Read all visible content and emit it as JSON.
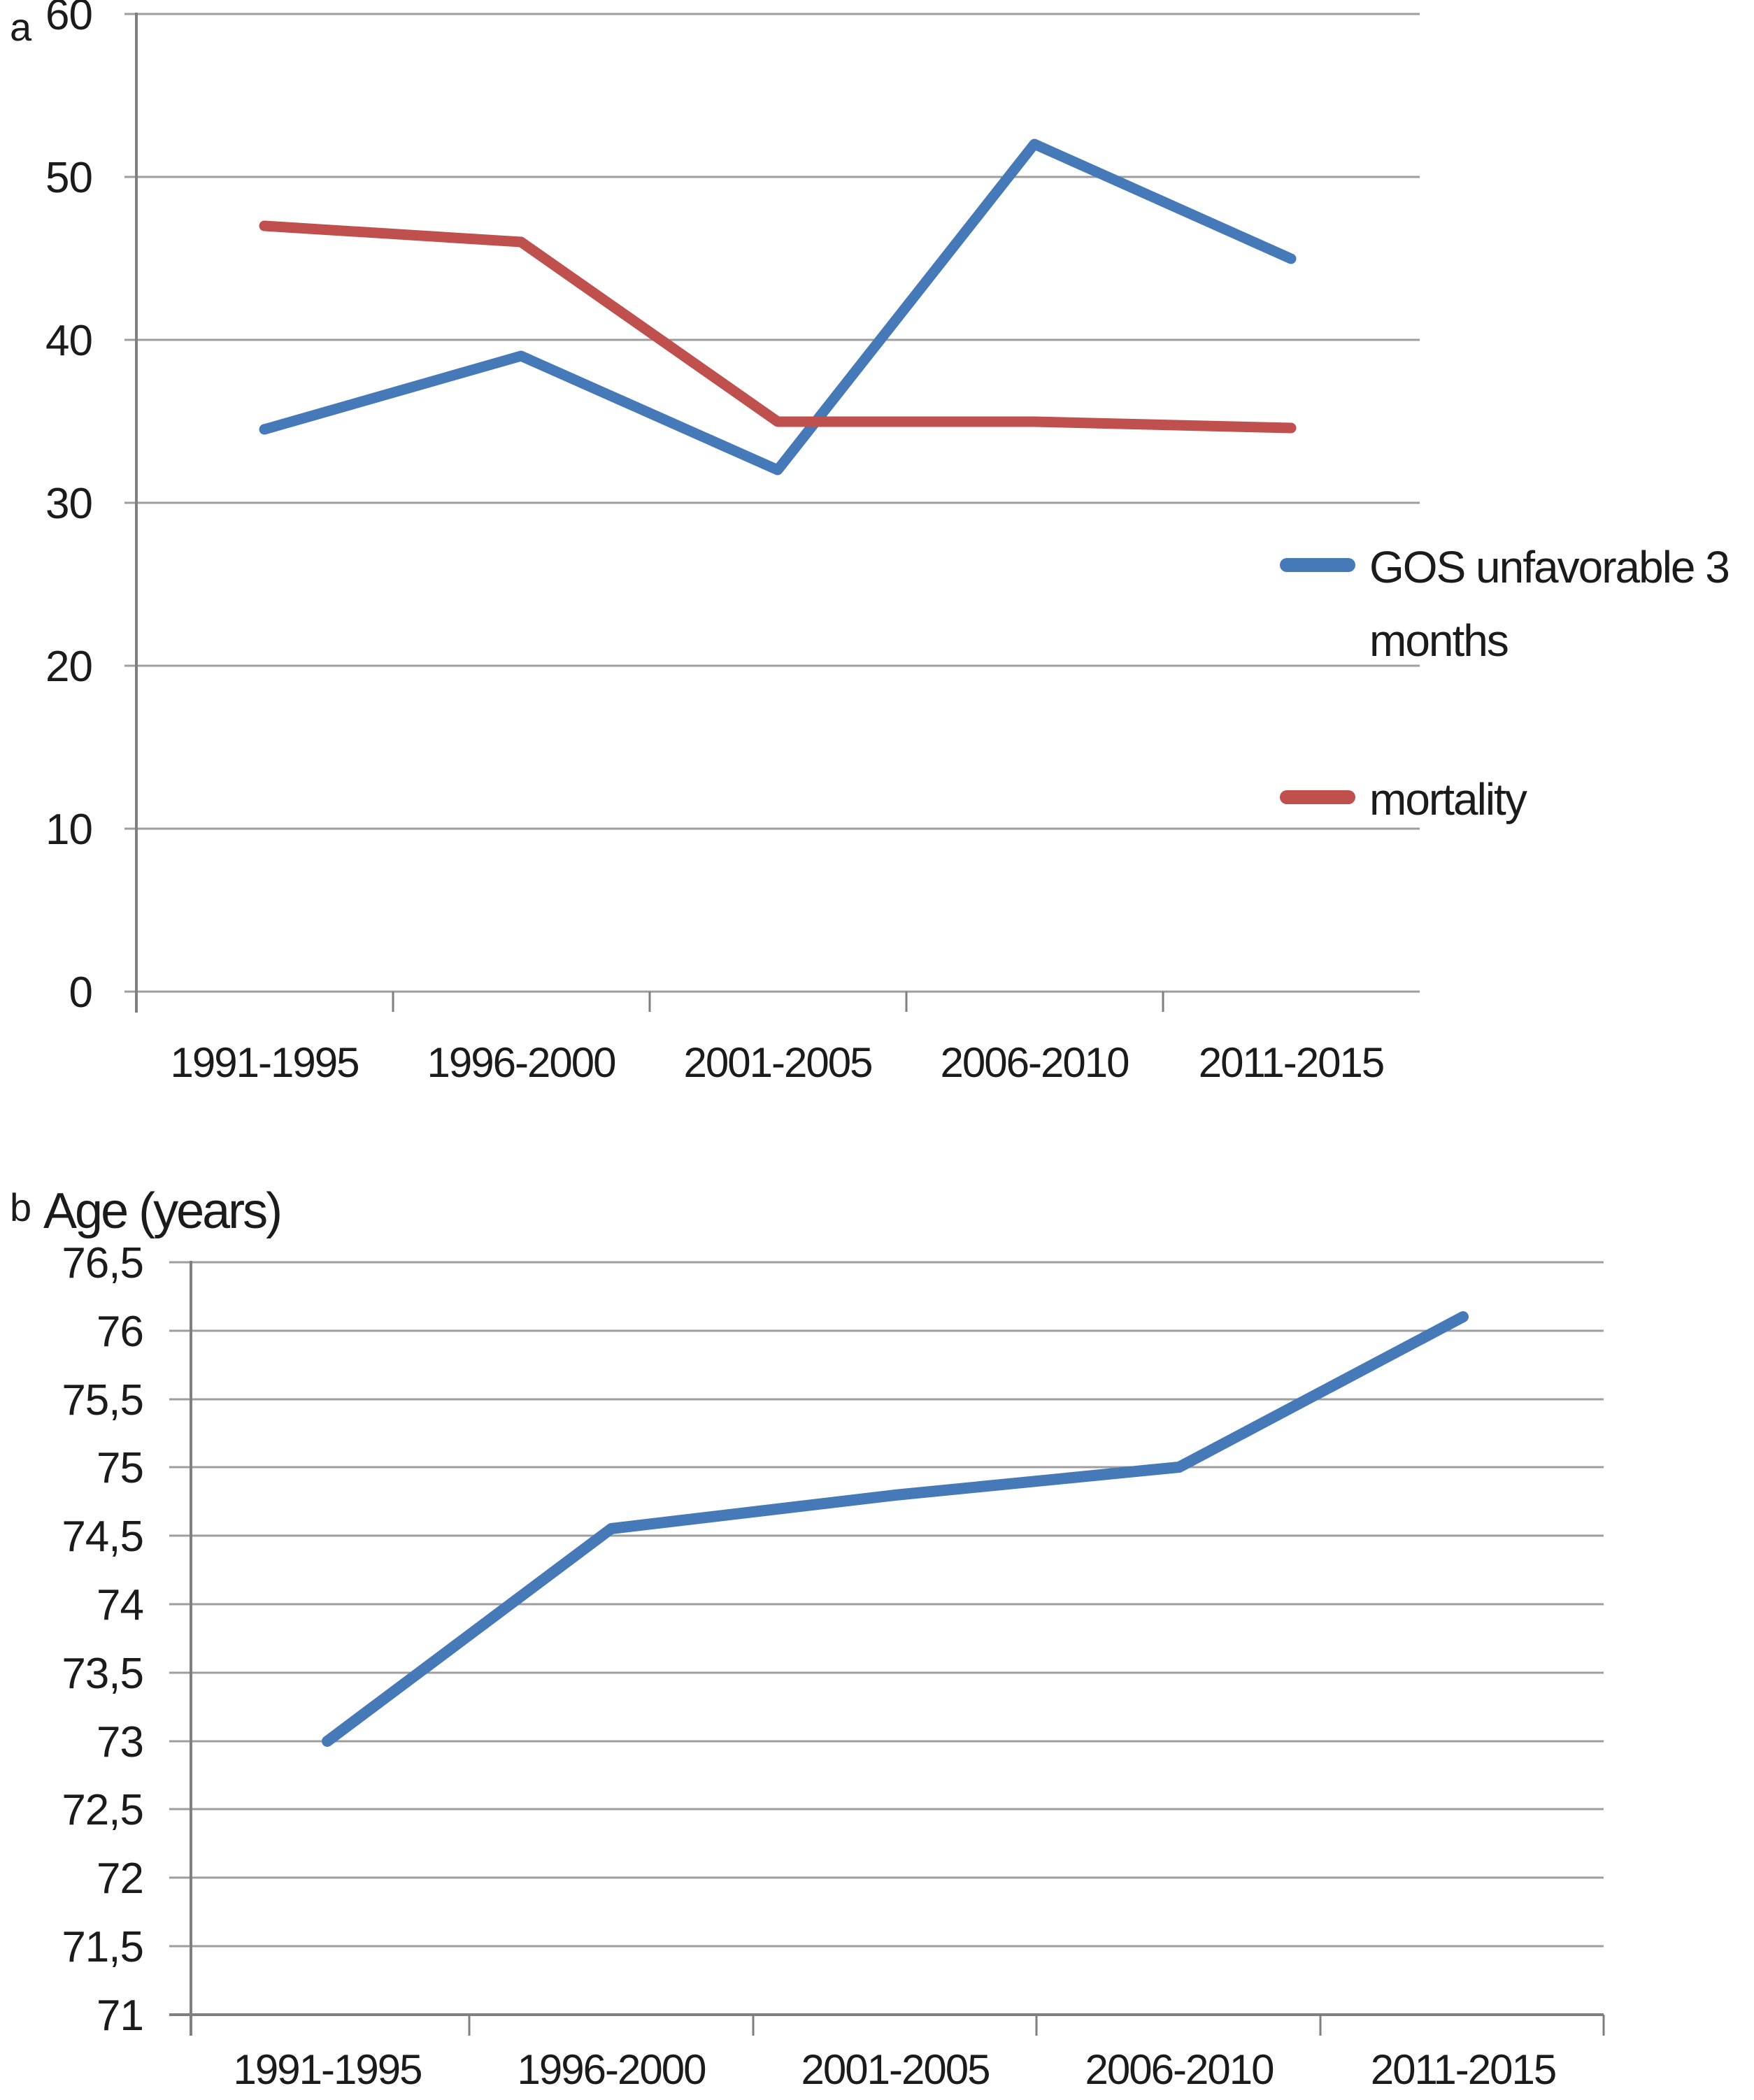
{
  "figure": {
    "panel_a_label": "a",
    "panel_b_label": "b"
  },
  "legend": {
    "gos_line1": "GOS unfavorable 3",
    "gos_line2": "months",
    "mortality": "mortality"
  },
  "colors": {
    "series_blue": "#4679b7",
    "series_red": "#c0504d",
    "grid_gray": "#9e9e9e",
    "axis_gray": "#7f7f7f",
    "text_black": "#1b1b1b"
  },
  "chart_data": [
    {
      "type": "line",
      "panel": "a",
      "title": "",
      "categories": [
        "1991-1995",
        "1996-2000",
        "2001-2005",
        "2006-2010",
        "2011-2015"
      ],
      "series": [
        {
          "name": "GOS unfavorable 3 months",
          "color": "#4679b7",
          "values": [
            34.5,
            39,
            32,
            52,
            45
          ]
        },
        {
          "name": "mortality",
          "color": "#c0504d",
          "values": [
            47,
            46,
            35,
            35,
            34.6
          ]
        }
      ],
      "ylim": [
        0,
        60
      ],
      "yticks": [
        60,
        50,
        40,
        30,
        20,
        10,
        0
      ],
      "ytick_labels": [
        "60",
        "50",
        "40",
        "30",
        "20",
        "10",
        "0"
      ],
      "xlabel": "",
      "ylabel": "",
      "grid": true,
      "legend_position": "right"
    },
    {
      "type": "line",
      "panel": "b",
      "title": "Age (years)",
      "categories": [
        "1991-1995",
        "1996-2000",
        "2001-2005",
        "2006-2010",
        "2011-2015"
      ],
      "series": [
        {
          "name": "Age (years)",
          "color": "#4679b7",
          "values": [
            73,
            74.55,
            74.8,
            75,
            76.1
          ]
        }
      ],
      "ylim": [
        71,
        76.5
      ],
      "yticks": [
        76.5,
        76,
        75.5,
        75,
        74.5,
        74,
        73.5,
        73,
        72.5,
        72,
        71.5,
        71
      ],
      "ytick_labels": [
        "76,5",
        "76",
        "75,5",
        "75",
        "74,5",
        "74",
        "73,5",
        "73",
        "72,5",
        "72",
        "71,5",
        "71"
      ],
      "xlabel": "",
      "ylabel": "",
      "grid": true,
      "decimal_separator": ",",
      "legend_position": "none"
    }
  ]
}
